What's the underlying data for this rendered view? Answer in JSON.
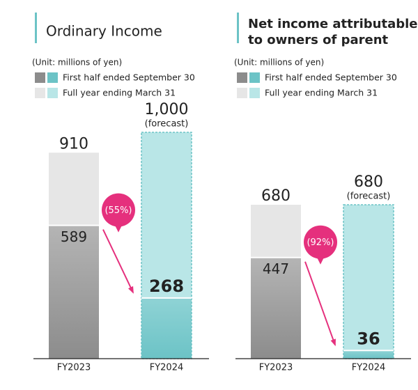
{
  "chart_data": [
    {
      "type": "bar",
      "title": [
        "Ordinary Income"
      ],
      "unit_note": "(Unit: millions of yen)",
      "categories": [
        "FY2023",
        "FY2024"
      ],
      "series": [
        {
          "name": "First half ended September 30",
          "colors": [
            "#8c8c8c",
            "#6cc3c6"
          ],
          "values": [
            589,
            268
          ]
        },
        {
          "name": "Full year ending March 31",
          "colors": [
            "#e6e6e6",
            "#b9e6e7"
          ],
          "values": [
            910,
            1000
          ],
          "value_labels": [
            "910",
            "1,000"
          ]
        }
      ],
      "forecast_note": "(forecast)",
      "change_label": "(55%)"
    },
    {
      "type": "bar",
      "title": [
        "Net income attributable",
        "to owners of parent"
      ],
      "unit_note": "(Unit: millions of yen)",
      "categories": [
        "FY2023",
        "FY2024"
      ],
      "series": [
        {
          "name": "First half ended September 30",
          "colors": [
            "#8c8c8c",
            "#6cc3c6"
          ],
          "values": [
            447,
            36
          ]
        },
        {
          "name": "Full year ending March 31",
          "colors": [
            "#e6e6e6",
            "#b9e6e7"
          ],
          "values": [
            680,
            680
          ]
        }
      ],
      "forecast_note": "(forecast)",
      "change_label": "(92%)"
    }
  ]
}
